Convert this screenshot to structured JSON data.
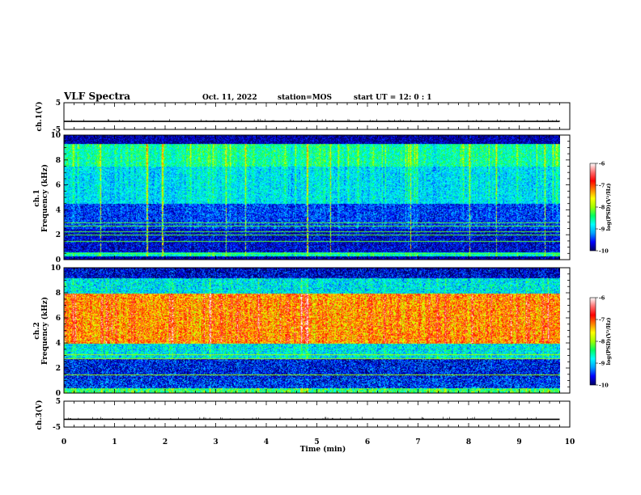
{
  "header": {
    "title": "VLF Spectra",
    "date": "Oct. 11, 2022",
    "station": "station=MOS",
    "start_ut": "start UT = 12: 0 : 1"
  },
  "colors": {
    "spectrogram_scale": [
      "#000060",
      "#0000ff",
      "#00a0ff",
      "#00ffff",
      "#00ff60",
      "#a0ff00",
      "#ffff00",
      "#ff8000",
      "#ff0000",
      "#ff7070",
      "#ffffff"
    ]
  },
  "chart_data": [
    {
      "type": "line",
      "panel": "ch1-waveform",
      "ylabel": "ch.1(V)",
      "ylim": [
        -5,
        5
      ],
      "y_tick_labels": [
        "5",
        "-5"
      ],
      "x": [
        0,
        9.8
      ],
      "values": [
        -2,
        -2
      ]
    },
    {
      "type": "heatmap",
      "panel": "ch1-spectrogram",
      "ylabel_line1": "ch.1",
      "ylabel_line2": "Frequency (kHz)",
      "ylim": [
        0,
        10
      ],
      "y_tick_labels": [
        "0",
        "2",
        "4",
        "6",
        "8",
        "10"
      ],
      "xlim": [
        0,
        10
      ],
      "data_end_min": 9.8,
      "colorbar": {
        "label": "log(PSD)(V²/Hz)",
        "range": [
          -10,
          -6
        ],
        "tick_labels": [
          "-6",
          "-7",
          "-8",
          "-9",
          "-10"
        ]
      },
      "bands": [
        {
          "freq_khz": [
            0,
            0.3
          ],
          "level": 0.05
        },
        {
          "freq_khz": [
            0.3,
            0.6
          ],
          "level": 0.45
        },
        {
          "freq_khz": [
            0.6,
            2.5
          ],
          "level": 0.1
        },
        {
          "freq_khz": [
            2.5,
            4.5
          ],
          "level": 0.18
        },
        {
          "freq_khz": [
            4.5,
            7.5
          ],
          "level": 0.38
        },
        {
          "freq_khz": [
            7.5,
            9.3
          ],
          "level": 0.5
        },
        {
          "freq_khz": [
            9.3,
            10
          ],
          "level": 0.05
        }
      ],
      "horizontal_lines_khz": [
        0.55,
        1.5,
        2.0,
        2.3,
        2.7,
        3.0
      ]
    },
    {
      "type": "heatmap",
      "panel": "ch2-spectrogram",
      "ylabel_line1": "ch.2",
      "ylabel_line2": "Frequency (kHz)",
      "ylim": [
        0,
        10
      ],
      "y_tick_labels": [
        "0",
        "2",
        "4",
        "6",
        "8",
        "10"
      ],
      "xlim": [
        0,
        10
      ],
      "data_end_min": 9.8,
      "colorbar": {
        "label": "log(PSD)(V²/Hz)",
        "range": [
          -10,
          -6
        ],
        "tick_labels": [
          "-6",
          "-7",
          "-8",
          "-9",
          "-10"
        ]
      },
      "bands": [
        {
          "freq_khz": [
            0,
            0.4
          ],
          "level": 0.5
        },
        {
          "freq_khz": [
            0.4,
            1.2
          ],
          "level": 0.15
        },
        {
          "freq_khz": [
            1.2,
            2.8
          ],
          "level": 0.12
        },
        {
          "freq_khz": [
            2.8,
            4.0
          ],
          "level": 0.35
        },
        {
          "freq_khz": [
            4.0,
            8.0
          ],
          "level": 0.82
        },
        {
          "freq_khz": [
            8.0,
            9.2
          ],
          "level": 0.35
        },
        {
          "freq_khz": [
            9.2,
            10
          ],
          "level": 0.08
        }
      ],
      "horizontal_lines_khz": [
        1.5,
        2.8,
        3.1
      ]
    },
    {
      "type": "line",
      "panel": "ch3-waveform",
      "ylabel": "ch.3(V)",
      "ylim": [
        -5,
        5
      ],
      "y_tick_labels": [
        "5",
        "-5"
      ],
      "x": [
        0,
        9.8
      ],
      "values": [
        -2,
        -2
      ]
    }
  ],
  "x_axis": {
    "label": "Time (min)",
    "range": [
      0,
      10
    ],
    "tick_labels": [
      "0",
      "1",
      "2",
      "3",
      "4",
      "5",
      "6",
      "7",
      "8",
      "9",
      "10"
    ]
  }
}
